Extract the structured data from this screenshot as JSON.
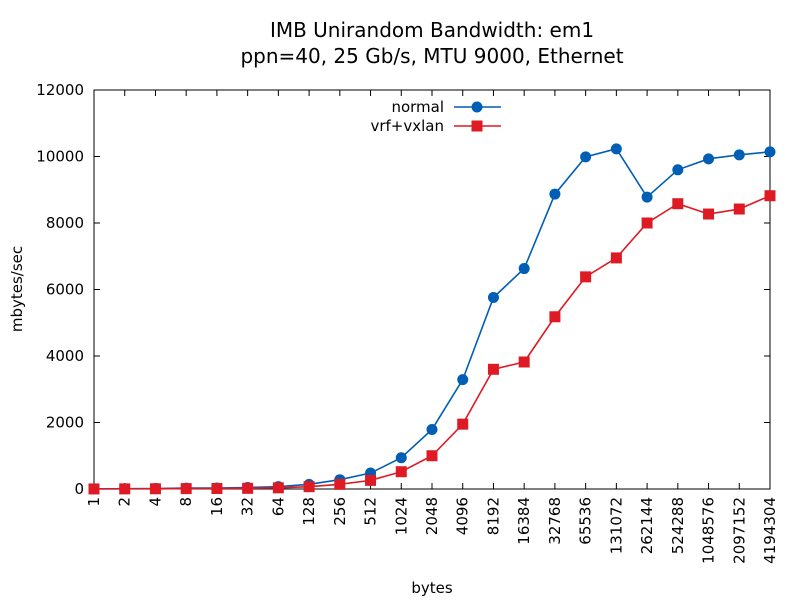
{
  "chart_data": {
    "type": "line",
    "title": "IMB Unirandom Bandwidth: em1",
    "subtitle": "ppn=40, 25 Gb/s, MTU 9000, Ethernet",
    "xlabel": "bytes",
    "ylabel": "mbytes/sec",
    "ylim": [
      0,
      12000
    ],
    "yticks": [
      "0",
      "2000",
      "4000",
      "6000",
      "8000",
      "10000",
      "12000"
    ],
    "grid": false,
    "legend_position": "top-center",
    "categories": [
      "1",
      "2",
      "4",
      "8",
      "16",
      "32",
      "64",
      "128",
      "256",
      "512",
      "1024",
      "2048",
      "4096",
      "8192",
      "16384",
      "32768",
      "65536",
      "131072",
      "262144",
      "524288",
      "1048576",
      "2097152",
      "4194304"
    ],
    "series": [
      {
        "name": "normal",
        "color": "#005fb4",
        "marker": "circle",
        "values": [
          4,
          8,
          15,
          27,
          30,
          45,
          70,
          140,
          280,
          480,
          940,
          1790,
          3290,
          5760,
          6630,
          8870,
          9990,
          10230,
          8780,
          9600,
          9930,
          10050,
          10140
        ]
      },
      {
        "name": "vrf+vxlan",
        "color": "#de1a24",
        "marker": "square",
        "values": [
          2,
          4,
          7,
          12,
          15,
          20,
          35,
          70,
          140,
          260,
          520,
          1000,
          1950,
          3600,
          3820,
          5180,
          6380,
          6950,
          8000,
          8580,
          8270,
          8420,
          8820
        ]
      }
    ]
  }
}
